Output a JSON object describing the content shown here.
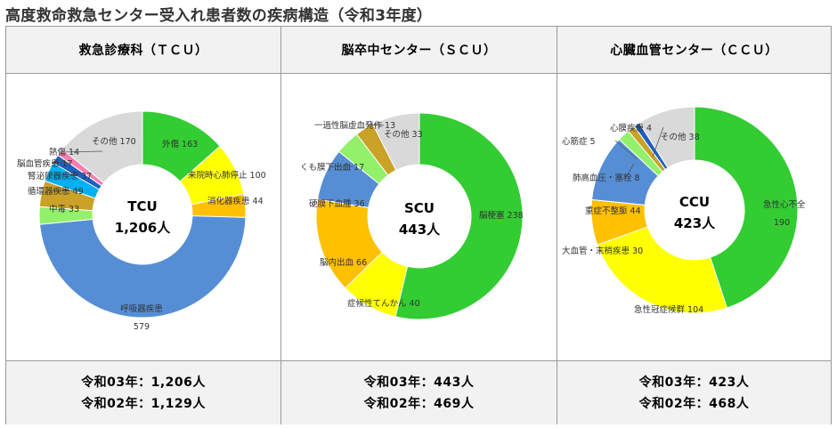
{
  "title": "高度救命救急センター受入れ患者数の疾病構造（令和3年度）",
  "panels": [
    {
      "header": "救急診療科（ＴＣＵ）",
      "center_label": "TCU",
      "center_value": "1,206人",
      "footer": [
        "令和03年：1,206人",
        "令和02年：1,129人"
      ]
    },
    {
      "header": "脳卒中センター（ＳＣＵ）",
      "center_label": "SCU",
      "center_value": "443人",
      "footer": [
        "令和03年：443人",
        "令和02年：469人"
      ]
    },
    {
      "header": "心臓血管センター（ＣＣＵ）",
      "center_label": "CCU",
      "center_value": "423人",
      "footer": [
        "令和03年：423人",
        "令和02年：468人"
      ]
    }
  ],
  "chart_data": [
    {
      "type": "pie",
      "title": "救急診療科（ＴＣＵ）",
      "total": 1206,
      "slices": [
        {
          "label": "外傷",
          "value": 163,
          "color": "#33cc33"
        },
        {
          "label": "来院時心肺停止",
          "value": 100,
          "color": "#ffff00"
        },
        {
          "label": "消化器疾患",
          "value": 44,
          "color": "#ffc000"
        },
        {
          "label": "呼吸器疾患",
          "value": 579,
          "color": "#558ed5"
        },
        {
          "label": "中毒",
          "value": 33,
          "color": "#92f06a"
        },
        {
          "label": "循環器疾患",
          "value": 49,
          "color": "#c9a227"
        },
        {
          "label": "腎泌尿器疾患",
          "value": 37,
          "color": "#00b0f0"
        },
        {
          "label": "脳血管疾患",
          "value": 17,
          "color": "#1f5fbf"
        },
        {
          "label": "熱傷",
          "value": 14,
          "color": "#f47fb0"
        },
        {
          "label": "その他",
          "value": 170,
          "color": "#d9d9d9"
        }
      ]
    },
    {
      "type": "pie",
      "title": "脳卒中センター（ＳＣＵ）",
      "total": 443,
      "slices": [
        {
          "label": "脳梗塞",
          "value": 238,
          "color": "#33cc33"
        },
        {
          "label": "症候性てんかん",
          "value": 40,
          "color": "#ffff00"
        },
        {
          "label": "脳内出血",
          "value": 66,
          "color": "#ffc000"
        },
        {
          "label": "硬膜下血腫",
          "value": 36,
          "color": "#558ed5"
        },
        {
          "label": "くも膜下出血",
          "value": 17,
          "color": "#92f06a"
        },
        {
          "label": "一過性脳虚血発作",
          "value": 13,
          "color": "#c9a227"
        },
        {
          "label": "その他",
          "value": 33,
          "color": "#d9d9d9"
        }
      ]
    },
    {
      "type": "pie",
      "title": "心臓血管センター（ＣＣＵ）",
      "total": 423,
      "slices": [
        {
          "label": "急性心不全",
          "value": 190,
          "color": "#33cc33"
        },
        {
          "label": "急性冠症候群",
          "value": 104,
          "color": "#ffff00"
        },
        {
          "label": "大血管・末梢疾患",
          "value": 30,
          "color": "#ffc000"
        },
        {
          "label": "重症不整脈",
          "value": 44,
          "color": "#558ed5"
        },
        {
          "label": "肺高血圧・塞栓",
          "value": 8,
          "color": "#92f06a"
        },
        {
          "label": "心筋症",
          "value": 5,
          "color": "#c9a227"
        },
        {
          "label": "心膜疾患",
          "value": 4,
          "color": "#1f5fbf"
        },
        {
          "label": "その他",
          "value": 38,
          "color": "#d9d9d9"
        }
      ]
    }
  ]
}
